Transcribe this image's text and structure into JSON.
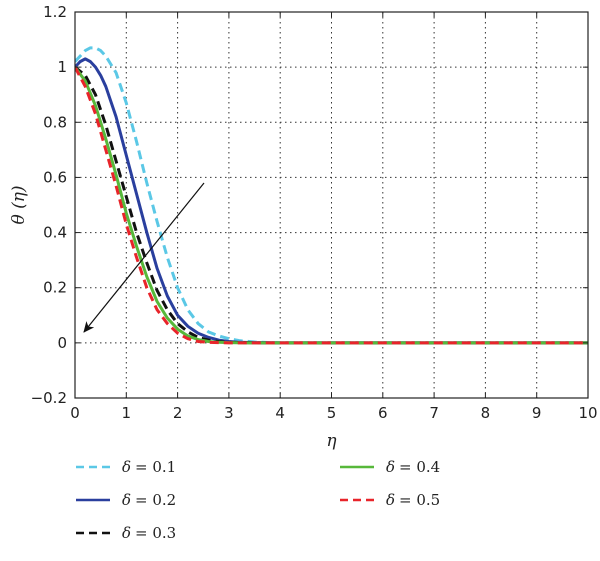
{
  "chart_data": {
    "type": "line",
    "title": "",
    "xlabel": "η",
    "ylabel": "θ (η)",
    "xlim": [
      0,
      10
    ],
    "ylim": [
      -0.2,
      1.2
    ],
    "xticks": [
      0,
      1,
      2,
      3,
      4,
      5,
      6,
      7,
      8,
      9,
      10
    ],
    "yticks": [
      -0.2,
      0,
      0.2,
      0.4,
      0.6,
      0.8,
      1,
      1.2
    ],
    "xtick_labels": [
      "0",
      "1",
      "2",
      "3",
      "4",
      "5",
      "6",
      "7",
      "8",
      "9",
      "10"
    ],
    "ytick_labels": [
      "−0.2",
      "0",
      "0.2",
      "0.4",
      "0.6",
      "0.8",
      "1",
      "1.2"
    ],
    "grid": true,
    "legend_position": "below",
    "annotation": "arrow indicating decreasing θ as δ increases",
    "series": [
      {
        "name": "δ = 0.1",
        "legend_greek": "δ",
        "legend_value": "= 0.1",
        "color": "#5bc8e6",
        "dash": "dashed",
        "x": [
          0,
          0.1,
          0.2,
          0.3,
          0.4,
          0.5,
          0.6,
          0.8,
          1.0,
          1.2,
          1.4,
          1.6,
          1.8,
          2.0,
          2.2,
          2.4,
          2.6,
          2.8,
          3.0,
          3.2,
          3.5,
          3.8,
          4.0,
          5,
          6,
          7,
          8,
          9,
          10
        ],
        "y": [
          1.02,
          1.04,
          1.06,
          1.07,
          1.07,
          1.06,
          1.04,
          0.98,
          0.87,
          0.73,
          0.58,
          0.44,
          0.31,
          0.2,
          0.12,
          0.07,
          0.04,
          0.025,
          0.015,
          0.008,
          0.003,
          0.001,
          0,
          0,
          0,
          0,
          0,
          0,
          0
        ]
      },
      {
        "name": "δ = 0.2",
        "legend_greek": "δ",
        "legend_value": "= 0.2",
        "color": "#2a3f9e",
        "dash": "solid",
        "x": [
          0,
          0.1,
          0.2,
          0.3,
          0.4,
          0.5,
          0.6,
          0.8,
          1.0,
          1.2,
          1.4,
          1.6,
          1.8,
          2.0,
          2.2,
          2.4,
          2.6,
          2.8,
          3.0,
          3.2,
          3.5,
          4.0,
          5,
          6,
          7,
          8,
          9,
          10
        ],
        "y": [
          1.0,
          1.02,
          1.03,
          1.02,
          1.0,
          0.97,
          0.93,
          0.82,
          0.68,
          0.54,
          0.4,
          0.27,
          0.17,
          0.1,
          0.06,
          0.035,
          0.02,
          0.01,
          0.005,
          0.002,
          0.001,
          0,
          0,
          0,
          0,
          0,
          0,
          0
        ]
      },
      {
        "name": "δ = 0.3",
        "legend_greek": "δ",
        "legend_value": "= 0.3",
        "color": "#111111",
        "dash": "dashed",
        "x": [
          0,
          0.2,
          0.4,
          0.6,
          0.8,
          1.0,
          1.2,
          1.4,
          1.6,
          1.8,
          2.0,
          2.2,
          2.4,
          2.6,
          2.8,
          3.0,
          3.3,
          3.6,
          4,
          5,
          6,
          7,
          8,
          9,
          10
        ],
        "y": [
          1.0,
          0.97,
          0.9,
          0.79,
          0.66,
          0.53,
          0.4,
          0.29,
          0.19,
          0.12,
          0.07,
          0.04,
          0.02,
          0.01,
          0.005,
          0.002,
          0.001,
          0,
          0,
          0,
          0,
          0,
          0,
          0,
          0
        ]
      },
      {
        "name": "δ = 0.4",
        "legend_greek": "δ",
        "legend_value": "= 0.4",
        "color": "#57b83a",
        "dash": "solid",
        "x": [
          0,
          0.2,
          0.4,
          0.6,
          0.8,
          1.0,
          1.2,
          1.4,
          1.6,
          1.8,
          2.0,
          2.2,
          2.4,
          2.6,
          2.8,
          3.0,
          3.3,
          3.6,
          4,
          5,
          6,
          7,
          8,
          9,
          10
        ],
        "y": [
          1.0,
          0.95,
          0.86,
          0.74,
          0.61,
          0.47,
          0.35,
          0.24,
          0.15,
          0.09,
          0.05,
          0.025,
          0.012,
          0.005,
          0.002,
          0.001,
          0,
          0,
          0,
          0,
          0,
          0,
          0,
          0,
          0
        ]
      },
      {
        "name": "δ = 0.5",
        "legend_greek": "δ",
        "legend_value": "= 0.5",
        "color": "#e8242a",
        "dash": "dashed",
        "x": [
          0,
          0.2,
          0.4,
          0.6,
          0.8,
          1.0,
          1.2,
          1.4,
          1.6,
          1.8,
          2.0,
          2.2,
          2.4,
          2.6,
          2.8,
          3.0,
          3.3,
          4,
          5,
          6,
          7,
          8,
          9,
          10
        ],
        "y": [
          1.0,
          0.93,
          0.83,
          0.7,
          0.57,
          0.43,
          0.31,
          0.2,
          0.12,
          0.07,
          0.035,
          0.015,
          0.005,
          0.002,
          0.001,
          0,
          0,
          0,
          0,
          0,
          0,
          0,
          0,
          0
        ]
      }
    ]
  }
}
